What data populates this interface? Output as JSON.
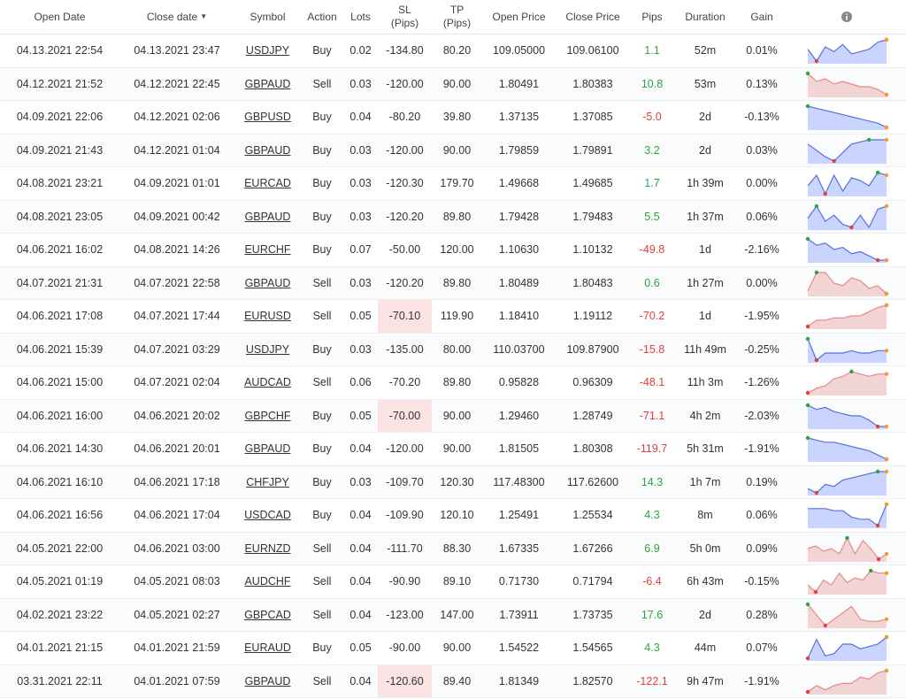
{
  "table": {
    "headers": [
      "Open Date",
      "Close date",
      "Symbol",
      "Action",
      "Lots",
      "SL\n(Pips)",
      "TP\n(Pips)",
      "Open Price",
      "Close Price",
      "Pips",
      "Duration",
      "Gain"
    ],
    "spark_colors": {
      "Buy": {
        "line": "#5b6ee1",
        "fill": "#c9d4ff"
      },
      "Sell": {
        "line": "#e58a8a",
        "fill": "#f3d4d4"
      }
    },
    "rows": [
      {
        "cells": [
          "04.13.2021 22:54",
          "04.13.2021 23:47",
          "USDJPY",
          "Buy",
          "0.02",
          "-134.80",
          "80.20",
          "109.05000",
          "109.06100",
          "1.1",
          "52m",
          "0.01%"
        ],
        "highlight": false,
        "trend": [
          6,
          1,
          7,
          5,
          8,
          4,
          5,
          6,
          9,
          10
        ]
      },
      {
        "cells": [
          "04.12.2021 21:52",
          "04.12.2021 22:45",
          "GBPAUD",
          "Sell",
          "0.03",
          "-120.00",
          "90.00",
          "1.80491",
          "1.80383",
          "10.8",
          "53m",
          "0.13%"
        ],
        "highlight": false,
        "trend": [
          9,
          6,
          7,
          5,
          6,
          5,
          4,
          4,
          3,
          1
        ]
      },
      {
        "cells": [
          "04.09.2021 22:06",
          "04.12.2021 02:06",
          "GBPUSD",
          "Buy",
          "0.04",
          "-80.20",
          "39.80",
          "1.37135",
          "1.37085",
          "-5.0",
          "2d",
          "-0.13%"
        ],
        "highlight": false,
        "trend": [
          10,
          9,
          8,
          7,
          6,
          5,
          4,
          3,
          2,
          0
        ]
      },
      {
        "cells": [
          "04.09.2021 21:43",
          "04.12.2021 01:04",
          "GBPAUD",
          "Buy",
          "0.03",
          "-120.00",
          "90.00",
          "1.79859",
          "1.79891",
          "3.2",
          "2d",
          "0.03%"
        ],
        "highlight": false,
        "trend": [
          8,
          5,
          2,
          0,
          4,
          8,
          9,
          10,
          10,
          10
        ]
      },
      {
        "cells": [
          "04.08.2021 23:21",
          "04.09.2021 01:01",
          "EURCAD",
          "Buy",
          "0.03",
          "-120.30",
          "179.70",
          "1.49668",
          "1.49685",
          "1.7",
          "1h 39m",
          "0.00%"
        ],
        "highlight": false,
        "trend": [
          5,
          9,
          2,
          9,
          3,
          8,
          7,
          5,
          10,
          9
        ]
      },
      {
        "cells": [
          "04.08.2021 23:05",
          "04.09.2021 00:42",
          "GBPAUD",
          "Buy",
          "0.03",
          "-120.20",
          "89.80",
          "1.79428",
          "1.79483",
          "5.5",
          "1h 37m",
          "0.06%"
        ],
        "highlight": false,
        "trend": [
          5,
          9,
          4,
          6,
          3,
          2,
          6,
          2,
          8,
          9
        ]
      },
      {
        "cells": [
          "04.06.2021 16:02",
          "04.08.2021 14:26",
          "EURCHF",
          "Buy",
          "0.07",
          "-50.00",
          "120.00",
          "1.10630",
          "1.10132",
          "-49.8",
          "1d",
          "-2.16%"
        ],
        "highlight": false,
        "trend": [
          10,
          7,
          8,
          5,
          6,
          3,
          4,
          2,
          0,
          0
        ]
      },
      {
        "cells": [
          "04.07.2021 21:31",
          "04.07.2021 22:58",
          "GBPAUD",
          "Sell",
          "0.03",
          "-120.20",
          "89.80",
          "1.80489",
          "1.80483",
          "0.6",
          "1h 27m",
          "0.00%"
        ],
        "highlight": false,
        "trend": [
          2,
          9,
          9,
          5,
          4,
          7,
          6,
          3,
          4,
          1
        ]
      },
      {
        "cells": [
          "04.06.2021 17:08",
          "04.07.2021 17:44",
          "EURUSD",
          "Sell",
          "0.05",
          "-70.10",
          "119.90",
          "1.18410",
          "1.19112",
          "-70.2",
          "1d",
          "-1.95%"
        ],
        "highlight": true,
        "trend": [
          0,
          3,
          3,
          4,
          4,
          5,
          5,
          7,
          9,
          10
        ]
      },
      {
        "cells": [
          "04.06.2021 15:39",
          "04.07.2021 03:29",
          "USDJPY",
          "Buy",
          "0.03",
          "-135.00",
          "80.00",
          "110.03700",
          "109.87900",
          "-15.8",
          "11h 49m",
          "-0.25%"
        ],
        "highlight": false,
        "trend": [
          9,
          0,
          3,
          3,
          3,
          4,
          3,
          3,
          4,
          4
        ]
      },
      {
        "cells": [
          "04.06.2021 15:00",
          "04.07.2021 02:04",
          "AUDCAD",
          "Sell",
          "0.06",
          "-70.20",
          "89.80",
          "0.95828",
          "0.96309",
          "-48.1",
          "11h 3m",
          "-1.26%"
        ],
        "highlight": false,
        "trend": [
          0,
          2,
          3,
          6,
          7,
          9,
          8,
          7,
          8,
          8
        ]
      },
      {
        "cells": [
          "04.06.2021 16:00",
          "04.06.2021 20:02",
          "GBPCHF",
          "Buy",
          "0.05",
          "-70.00",
          "90.00",
          "1.29460",
          "1.28749",
          "-71.1",
          "4h 2m",
          "-2.03%"
        ],
        "highlight": true,
        "trend": [
          10,
          8,
          9,
          7,
          6,
          5,
          5,
          3,
          0,
          0
        ]
      },
      {
        "cells": [
          "04.06.2021 14:30",
          "04.06.2021 20:01",
          "GBPAUD",
          "Buy",
          "0.04",
          "-120.00",
          "90.00",
          "1.81505",
          "1.80308",
          "-119.7",
          "5h 31m",
          "-1.91%"
        ],
        "highlight": false,
        "trend": [
          10,
          9,
          8,
          8,
          7,
          6,
          5,
          4,
          2,
          0
        ]
      },
      {
        "cells": [
          "04.06.2021 16:10",
          "04.06.2021 17:18",
          "CHFJPY",
          "Buy",
          "0.03",
          "-109.70",
          "120.30",
          "117.48300",
          "117.62600",
          "14.3",
          "1h 7m",
          "0.19%"
        ],
        "highlight": false,
        "trend": [
          2,
          0,
          4,
          3,
          6,
          7,
          8,
          9,
          10,
          10
        ]
      },
      {
        "cells": [
          "04.06.2021 16:56",
          "04.06.2021 17:04",
          "USDCAD",
          "Buy",
          "0.04",
          "-109.90",
          "120.10",
          "1.25491",
          "1.25534",
          "4.3",
          "8m",
          "0.06%"
        ],
        "highlight": false,
        "trend": [
          8,
          8,
          8,
          7,
          7,
          4,
          3,
          3,
          0,
          10
        ]
      },
      {
        "cells": [
          "04.05.2021 22:00",
          "04.06.2021 03:00",
          "EURNZD",
          "Sell",
          "0.04",
          "-111.70",
          "88.30",
          "1.67335",
          "1.67266",
          "6.9",
          "5h 0m",
          "0.09%"
        ],
        "highlight": false,
        "trend": [
          5,
          6,
          4,
          5,
          3,
          9,
          3,
          8,
          5,
          1,
          3
        ]
      },
      {
        "cells": [
          "04.05.2021 01:19",
          "04.05.2021 08:03",
          "AUDCHF",
          "Sell",
          "0.04",
          "-90.90",
          "89.10",
          "0.71730",
          "0.71794",
          "-6.4",
          "6h 43m",
          "-0.15%"
        ],
        "highlight": false,
        "trend": [
          3,
          0,
          5,
          3,
          8,
          4,
          6,
          5,
          9,
          8,
          8
        ]
      },
      {
        "cells": [
          "04.02.2021 23:22",
          "04.05.2021 02:27",
          "GBPCAD",
          "Sell",
          "0.04",
          "-123.00",
          "147.00",
          "1.73911",
          "1.73735",
          "17.6",
          "2d",
          "0.28%"
        ],
        "highlight": false,
        "trend": [
          10,
          5,
          0,
          3,
          6,
          9,
          3,
          2,
          2,
          3
        ]
      },
      {
        "cells": [
          "04.01.2021 21:15",
          "04.01.2021 21:59",
          "EURAUD",
          "Buy",
          "0.05",
          "-90.00",
          "90.00",
          "1.54522",
          "1.54565",
          "4.3",
          "44m",
          "0.07%"
        ],
        "highlight": false,
        "trend": [
          0,
          8,
          1,
          2,
          6,
          6,
          4,
          5,
          6,
          9
        ]
      },
      {
        "cells": [
          "03.31.2021 22:11",
          "04.01.2021 07:59",
          "GBPAUD",
          "Sell",
          "0.04",
          "-120.60",
          "89.40",
          "1.81349",
          "1.82570",
          "-122.1",
          "9h 47m",
          "-1.91%"
        ],
        "highlight": true,
        "trend": [
          0,
          3,
          1,
          3,
          4,
          4,
          7,
          6,
          9,
          10
        ]
      }
    ]
  }
}
